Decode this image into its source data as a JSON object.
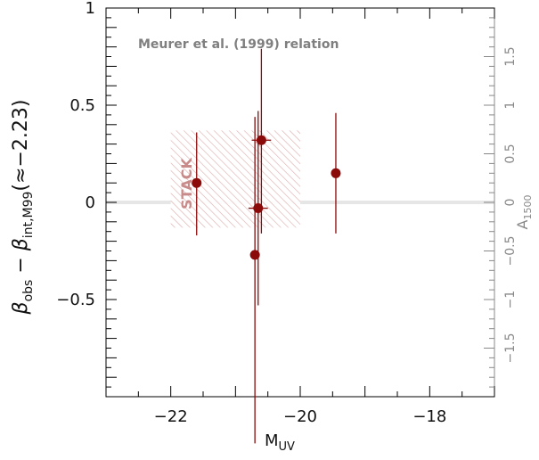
{
  "chart_data": {
    "type": "scatter",
    "xlabel": "M",
    "xlabel_sub": "UV",
    "ylabel_parts": {
      "beta1": "β",
      "sub1": "obs",
      "minus": " − ",
      "beta2": "β",
      "sub2": "int,M99",
      "tail": "(≈−2.23)"
    },
    "right_axis_label": "A",
    "right_axis_label_sub": "1500",
    "annotation": "Meurer et al. (1999) relation",
    "stack_label": "STACK",
    "xlim": [
      -23,
      -17
    ],
    "ylim": [
      -1,
      1
    ],
    "x_ticks": [
      -22,
      -20,
      -18
    ],
    "x_tick_labels": [
      "−22",
      "−20",
      "−18"
    ],
    "y_ticks": [
      -0.5,
      0,
      0.5,
      1
    ],
    "y_tick_labels": [
      "−0.5",
      "0",
      "0.5",
      "1"
    ],
    "right_ticks": [
      -1.5,
      -1,
      -0.5,
      0,
      0.5,
      1,
      1.5
    ],
    "right_tick_labels": [
      "−1.5",
      "−1",
      "−0.5",
      "0",
      "0.5",
      "1",
      "1.5"
    ],
    "zero_line": 0,
    "stack_box": {
      "x": [
        -22,
        -20
      ],
      "y": [
        -0.13,
        0.37
      ]
    },
    "points": [
      {
        "x": -21.6,
        "y": 0.1,
        "yerr_lo": 0.27,
        "yerr_hi": 0.26,
        "xerr": 0
      },
      {
        "x": -20.7,
        "y": -0.27,
        "yerr_lo": 0.97,
        "yerr_hi": 0.71,
        "xerr": 0
      },
      {
        "x": -20.65,
        "y": -0.03,
        "yerr_lo": 0.5,
        "yerr_hi": 0.5,
        "xerr": 0.15
      },
      {
        "x": -20.6,
        "y": 0.32,
        "yerr_lo": 0.48,
        "yerr_hi": 0.47,
        "xerr": 0.15
      },
      {
        "x": -19.45,
        "y": 0.15,
        "yerr_lo": 0.31,
        "yerr_hi": 0.31,
        "xerr": 0
      }
    ],
    "colors": {
      "points": "#8b0a0a",
      "hatch": "#d9a0a0",
      "stack_text": "#c98a8a",
      "zero_line": "#e6e6e6",
      "right_axis": "#888888",
      "annotation": "#7f7f7f"
    }
  }
}
